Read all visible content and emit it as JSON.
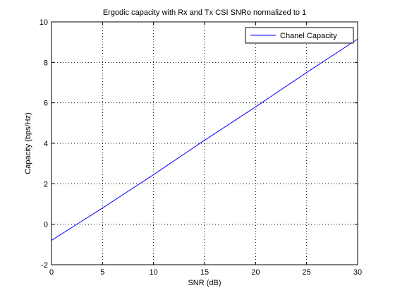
{
  "chart_data": {
    "type": "line",
    "title": "Ergodic capacity with Rx and Tx CSI SNRo normalized to 1",
    "xlabel": "SNR (dB)",
    "ylabel": "Capacity (bps/Hz)",
    "xlim": [
      0,
      30
    ],
    "ylim": [
      -2,
      10
    ],
    "xticks": [
      0,
      5,
      10,
      15,
      20,
      25,
      30
    ],
    "yticks": [
      -2,
      0,
      2,
      4,
      6,
      8,
      10
    ],
    "xtick_labels": [
      "0",
      "5",
      "10",
      "15",
      "20",
      "25",
      "30"
    ],
    "ytick_labels": [
      "-2",
      "0",
      "2",
      "4",
      "6",
      "8",
      "10"
    ],
    "grid": true,
    "grid_style": "dotted",
    "legend_position": "top-right",
    "series": [
      {
        "name": "Chanel Capacity",
        "color": "#0000ff",
        "x": [
          0,
          5,
          10,
          15,
          20,
          25,
          30
        ],
        "y": [
          -0.8,
          0.8,
          2.45,
          4.15,
          5.8,
          7.5,
          9.15
        ]
      }
    ]
  }
}
